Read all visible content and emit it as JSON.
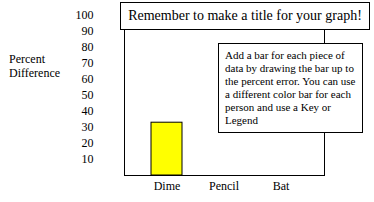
{
  "chart_data": {
    "type": "bar",
    "y_label": "Percent Difference",
    "categories": [
      "Dime",
      "Pencil",
      "Bat"
    ],
    "values": [
      33,
      null,
      null
    ],
    "color": "#ffff00",
    "ylim": [
      0,
      100
    ],
    "yticks": [
      10,
      20,
      30,
      40,
      50,
      60,
      70,
      80,
      90,
      100
    ],
    "grid": false,
    "annotations": [
      "Remember to make a title for your graph!",
      "Add a bar for each piece of data by drawing the bar up to the percent error. You can use a different color bar for each person and use a Key or Legend"
    ]
  }
}
